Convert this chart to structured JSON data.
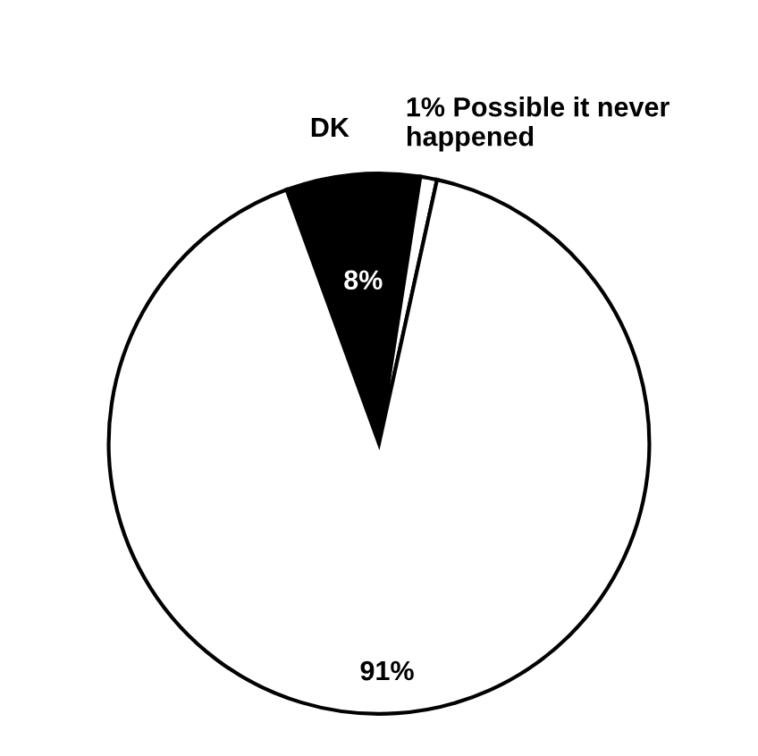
{
  "chart_data": {
    "type": "pie",
    "categories": [
      "DK",
      "Possible it never happened",
      null
    ],
    "values": [
      8,
      1,
      91
    ],
    "colors": [
      "#000000",
      "#ffffff",
      "#ffffff"
    ],
    "value_labels": [
      "8%",
      "1%",
      "91%"
    ],
    "legend": false
  }
}
